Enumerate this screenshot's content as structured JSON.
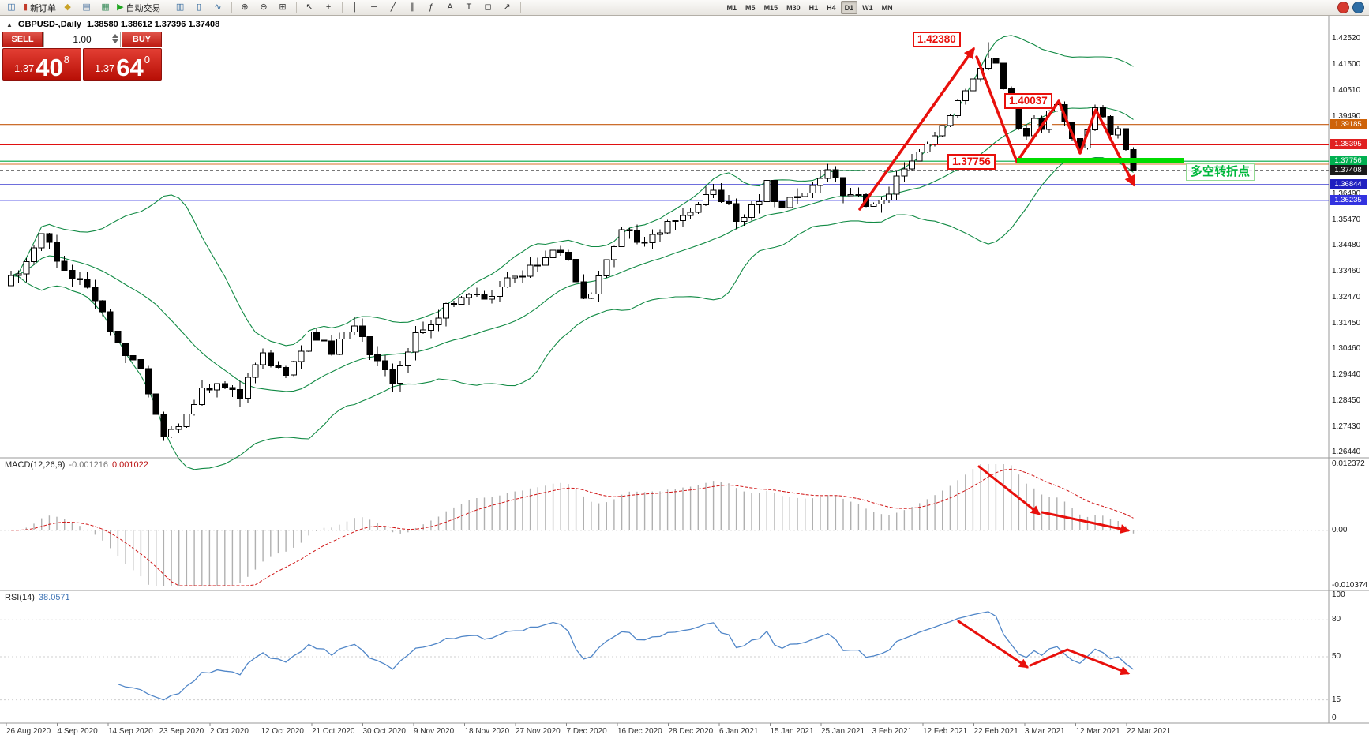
{
  "toolbar": {
    "items": [
      {
        "name": "new-chart-button",
        "glyph": "◫",
        "color": "#3A6EA5"
      },
      {
        "name": "new-order-button",
        "glyph": "▮",
        "color": "#C23B2A",
        "label": "新订单"
      },
      {
        "name": "metaeditor-button",
        "glyph": "◆",
        "color": "#C9A227"
      },
      {
        "name": "terminal-button",
        "glyph": "▤",
        "color": "#5B7FA6"
      },
      {
        "name": "strategy-tester-button",
        "glyph": "▦",
        "color": "#3F8F5F"
      },
      {
        "name": "autotrading-button",
        "glyph": "▶",
        "color": "#1FA51F",
        "label": "自动交易"
      },
      {
        "sep": true
      },
      {
        "name": "bar-chart-button",
        "glyph": "▥",
        "color": "#356B9E"
      },
      {
        "name": "candlestick-chart-button",
        "glyph": "▯",
        "color": "#356B9E"
      },
      {
        "name": "line-chart-button",
        "glyph": "∿",
        "color": "#356B9E"
      },
      {
        "sep": true
      },
      {
        "name": "zoom-in-button",
        "glyph": "⊕",
        "color": "#444444"
      },
      {
        "name": "zoom-out-button",
        "glyph": "⊖",
        "color": "#444444"
      },
      {
        "name": "tile-windows-button",
        "glyph": "⊞",
        "color": "#444444"
      },
      {
        "sep": true
      },
      {
        "name": "cursor-button",
        "glyph": "↖",
        "color": "#333333"
      },
      {
        "name": "crosshair-button",
        "glyph": "+",
        "color": "#333333"
      },
      {
        "sep": true
      },
      {
        "name": "vertical-line-button",
        "glyph": "│",
        "color": "#333333"
      },
      {
        "name": "horizontal-line-button",
        "glyph": "─",
        "color": "#333333"
      },
      {
        "name": "trendline-button",
        "glyph": "╱",
        "color": "#333333"
      },
      {
        "name": "channel-button",
        "glyph": "∥",
        "color": "#333333"
      },
      {
        "name": "fibonacci-button",
        "glyph": "ƒ",
        "color": "#333333"
      },
      {
        "name": "text-button",
        "glyph": "A",
        "color": "#333333"
      },
      {
        "name": "label-button",
        "glyph": "T",
        "color": "#333333"
      },
      {
        "name": "shapes-button",
        "glyph": "◻",
        "color": "#333333"
      },
      {
        "name": "arrows-button",
        "glyph": "↗",
        "color": "#333333"
      },
      {
        "sep": true
      }
    ],
    "timeframes": [
      "M1",
      "M5",
      "M15",
      "M30",
      "H1",
      "H4",
      "D1",
      "W1",
      "MN"
    ],
    "active_timeframe": "D1"
  },
  "chart_header": {
    "collapse_icon": "▲",
    "symbol": "GBPUSD-,Daily",
    "ohlc": "1.38580 1.38612 1.37396 1.37408"
  },
  "trade_panel": {
    "sell_label": "SELL",
    "buy_label": "BUY",
    "volume": "1.00",
    "sell_price": {
      "small": "1.37",
      "big": "40",
      "sup": "8"
    },
    "buy_price": {
      "small": "1.37",
      "big": "64",
      "sup": "0"
    }
  },
  "annotations": {
    "peak_price_label": "1.42380",
    "bounce_price_label": "1.40037",
    "support_price_label": "1.37756",
    "turning_point_label": "多空转折点"
  },
  "price_scale": {
    "main": [
      "1.42520",
      "1.41500",
      "1.40510",
      "1.39490",
      "1.36490",
      "1.35470",
      "1.34480",
      "1.33460",
      "1.32470",
      "1.31450",
      "1.30460",
      "1.29440",
      "1.28450",
      "1.27430",
      "1.26440"
    ],
    "tags": [
      {
        "text": "1.39185",
        "bg": "#CE6209"
      },
      {
        "text": "1.38395",
        "bg": "#E02020"
      },
      {
        "text": "1.37756",
        "bg": "#00B050"
      },
      {
        "text": "1.37408",
        "bg": "#1A1A1A"
      },
      {
        "text": "1.36844",
        "bg": "#2020C0"
      },
      {
        "text": "1.36235",
        "bg": "#3333E0"
      }
    ]
  },
  "hlines": [
    {
      "name": "resistance-line-139185",
      "price": 1.39185,
      "color": "#C55A11",
      "w": 1.2
    },
    {
      "name": "resistance-line-138395",
      "price": 1.38395,
      "color": "#E01010",
      "w": 1.2
    },
    {
      "name": "support-line-137756",
      "price": 1.37756,
      "color": "#00A844",
      "w": 1.2
    },
    {
      "name": "ask-line",
      "price": 1.3764,
      "color": "#D4702A",
      "w": 1
    },
    {
      "name": "bid-line",
      "price": 1.37408,
      "color": "#666666",
      "w": 1,
      "dash": "4 3"
    },
    {
      "name": "support-line-136844",
      "price": 1.36844,
      "color": "#1818C8",
      "w": 1.2
    },
    {
      "name": "support-line-136235",
      "price": 1.36235,
      "color": "#3030E0",
      "w": 1.2
    }
  ],
  "indicators": {
    "macd": {
      "title": "MACD(12,26,9)",
      "value1": "-0.001216",
      "value2": "0.001022",
      "scale": [
        "0.012372",
        "0.00",
        "-0.010374"
      ],
      "range": [
        -0.010374,
        0.012372
      ],
      "fast": 12,
      "slow": 26,
      "signal": 9
    },
    "rsi": {
      "title": "RSI(14)",
      "value": "38.0571",
      "scale": [
        "100",
        "80",
        "50",
        "15",
        "0"
      ],
      "levels": [
        80,
        50,
        15
      ],
      "period": 14
    }
  },
  "chart_data": {
    "type": "candlestick",
    "symbol": "GBPUSD",
    "timeframe": "Daily",
    "candle_count": 148,
    "price_axis_top": 1.4252,
    "price_axis_bottom": 1.2644,
    "last_close": 1.37408,
    "peak_high": 1.4238,
    "bounce_high": 1.40037,
    "forced_highs": {
      "128": 1.4238,
      "137": 1.40037
    },
    "bollinger": {
      "period": 20,
      "deviation": 2
    },
    "close_waypoints": [
      [
        0,
        1.331
      ],
      [
        4,
        1.3475
      ],
      [
        8,
        1.333
      ],
      [
        11,
        1.324
      ],
      [
        14,
        1.308
      ],
      [
        17,
        1.296
      ],
      [
        20,
        1.27
      ],
      [
        23,
        1.278
      ],
      [
        25,
        1.288
      ],
      [
        27,
        1.292
      ],
      [
        30,
        1.2865
      ],
      [
        33,
        1.3035
      ],
      [
        36,
        1.2935
      ],
      [
        39,
        1.31
      ],
      [
        42,
        1.304
      ],
      [
        45,
        1.312
      ],
      [
        47,
        1.304
      ],
      [
        50,
        1.29
      ],
      [
        53,
        1.31
      ],
      [
        56,
        1.318
      ],
      [
        60,
        1.327
      ],
      [
        62,
        1.323
      ],
      [
        65,
        1.332
      ],
      [
        68,
        1.336
      ],
      [
        71,
        1.342
      ],
      [
        73,
        1.339
      ],
      [
        75,
        1.323
      ],
      [
        77,
        1.333
      ],
      [
        80,
        1.353
      ],
      [
        82,
        1.346
      ],
      [
        85,
        1.351
      ],
      [
        88,
        1.356
      ],
      [
        90,
        1.362
      ],
      [
        92,
        1.367
      ],
      [
        95,
        1.356
      ],
      [
        97,
        1.359
      ],
      [
        99,
        1.368
      ],
      [
        101,
        1.359
      ],
      [
        103,
        1.364
      ],
      [
        105,
        1.37
      ],
      [
        107,
        1.373
      ],
      [
        109,
        1.366
      ],
      [
        111,
        1.364
      ],
      [
        113,
        1.359
      ],
      [
        115,
        1.366
      ],
      [
        117,
        1.375
      ],
      [
        119,
        1.381
      ],
      [
        121,
        1.388
      ],
      [
        123,
        1.396
      ],
      [
        125,
        1.405
      ],
      [
        127,
        1.414
      ],
      [
        128,
        1.418
      ],
      [
        129,
        1.415
      ],
      [
        130,
        1.406
      ],
      [
        131,
        1.3985
      ],
      [
        132,
        1.3905
      ],
      [
        133,
        1.387
      ],
      [
        134,
        1.3935
      ],
      [
        135,
        1.3905
      ],
      [
        136,
        1.3965
      ],
      [
        137,
        1.3995
      ],
      [
        138,
        1.393
      ],
      [
        139,
        1.387
      ],
      [
        140,
        1.3825
      ],
      [
        141,
        1.3895
      ],
      [
        142,
        1.399
      ],
      [
        143,
        1.3945
      ],
      [
        144,
        1.3875
      ],
      [
        145,
        1.3905
      ],
      [
        146,
        1.3825
      ],
      [
        147,
        1.3741
      ]
    ],
    "dates": [
      "26 Aug 2020",
      "4 Sep 2020",
      "14 Sep 2020",
      "23 Sep 2020",
      "2 Oct 2020",
      "12 Oct 2020",
      "21 Oct 2020",
      "30 Oct 2020",
      "9 Nov 2020",
      "18 Nov 2020",
      "27 Nov 2020",
      "7 Dec 2020",
      "16 Dec 2020",
      "28 Dec 2020",
      "6 Jan 2021",
      "15 Jan 2021",
      "25 Jan 2021",
      "3 Feb 2021",
      "12 Feb 2021",
      "22 Feb 2021",
      "3 Mar 2021",
      "12 Mar 2021",
      "22 Mar 2021"
    ]
  }
}
